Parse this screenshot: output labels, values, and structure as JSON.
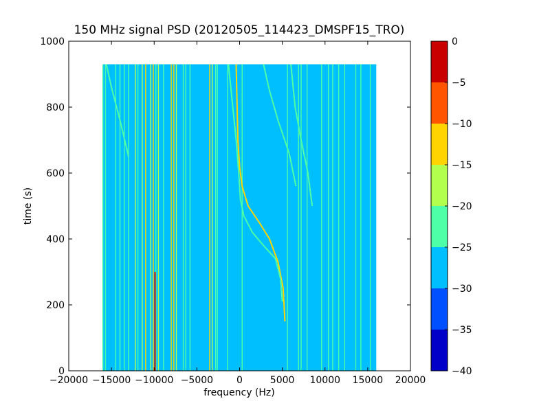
{
  "chart_data": {
    "type": "heatmap",
    "title": "150 MHz signal PSD (20120505_114423_DMSPF15_TRO)",
    "xlabel": "frequency (Hz)",
    "ylabel": "time (s)",
    "xlim": [
      -20000,
      20000
    ],
    "ylim": [
      0,
      1000
    ],
    "x_ticks": [
      -20000,
      -15000,
      -10000,
      -5000,
      0,
      5000,
      10000,
      15000,
      20000
    ],
    "y_ticks": [
      0,
      200,
      400,
      600,
      800,
      1000
    ],
    "data_extent": {
      "x": [
        -16000,
        16000
      ],
      "y": [
        0,
        930
      ]
    },
    "background_level": -27,
    "colormap": "jet",
    "colorbar": {
      "range": [
        -40,
        0
      ],
      "ticks": [
        0,
        -5,
        -10,
        -15,
        -20,
        -25,
        -30,
        -35,
        -40
      ],
      "levels": [
        {
          "from": -40,
          "to": -35,
          "color": "#0000c8"
        },
        {
          "from": -35,
          "to": -30,
          "color": "#0050ff"
        },
        {
          "from": -30,
          "to": -25,
          "color": "#00bfff"
        },
        {
          "from": -25,
          "to": -20,
          "color": "#4dffa6"
        },
        {
          "from": -20,
          "to": -15,
          "color": "#b3ff4d"
        },
        {
          "from": -15,
          "to": -10,
          "color": "#ffd400"
        },
        {
          "from": -10,
          "to": -5,
          "color": "#ff5500"
        },
        {
          "from": -5,
          "to": 0,
          "color": "#c80000"
        }
      ]
    },
    "lines": [
      {
        "freq": -16000,
        "level": -22
      },
      {
        "freq": -15700,
        "level": -22
      },
      {
        "freq": -14500,
        "level": -22
      },
      {
        "freq": -14000,
        "level": -22
      },
      {
        "freq": -13500,
        "level": -22
      },
      {
        "freq": -13000,
        "level": -22
      },
      {
        "freq": -12200,
        "level": -18
      },
      {
        "freq": -11900,
        "level": -22
      },
      {
        "freq": -11400,
        "level": -18
      },
      {
        "freq": -11000,
        "level": -14
      },
      {
        "freq": -10400,
        "level": -18
      },
      {
        "freq": -10100,
        "level": -14
      },
      {
        "freq": -9800,
        "level": -22
      },
      {
        "freq": -9500,
        "level": -18
      },
      {
        "freq": -8900,
        "level": -22
      },
      {
        "freq": -8000,
        "level": -14
      },
      {
        "freq": -7700,
        "level": -14
      },
      {
        "freq": -7400,
        "level": -18
      },
      {
        "freq": -6600,
        "level": -22
      },
      {
        "freq": -6300,
        "level": -22
      },
      {
        "freq": -5800,
        "level": -22
      },
      {
        "freq": -3500,
        "level": -14
      },
      {
        "freq": -3200,
        "level": -18
      },
      {
        "freq": -2800,
        "level": -22
      },
      {
        "freq": -2600,
        "level": -22
      },
      {
        "freq": -1400,
        "level": -22
      },
      {
        "freq": 300,
        "level": -22
      },
      {
        "freq": 5600,
        "level": -22
      },
      {
        "freq": 6900,
        "level": -22
      },
      {
        "freq": 7200,
        "level": -22
      },
      {
        "freq": 7900,
        "level": -22
      },
      {
        "freq": 9600,
        "level": -22
      },
      {
        "freq": 10400,
        "level": -22
      },
      {
        "freq": 10900,
        "level": -22
      },
      {
        "freq": 11600,
        "level": -22
      },
      {
        "freq": 12300,
        "level": -22
      },
      {
        "freq": 13600,
        "level": -22
      },
      {
        "freq": 14200,
        "level": -22
      },
      {
        "freq": 15300,
        "level": -22
      }
    ],
    "segments": [
      {
        "freq": -9900,
        "t_start": 0,
        "t_end": 300,
        "level": -4
      }
    ],
    "chirps": [
      {
        "name": "",
        "level": -12,
        "points": [
          [
            5300,
            150
          ],
          [
            5100,
            250
          ],
          [
            4500,
            330
          ],
          [
            3500,
            400
          ],
          [
            2300,
            450
          ],
          [
            1000,
            500
          ],
          [
            300,
            560
          ],
          [
            0,
            620
          ],
          [
            -200,
            700
          ],
          [
            -400,
            930
          ]
        ]
      },
      {
        "name": "",
        "level": -20,
        "points": [
          [
            5000,
            210
          ],
          [
            4800,
            280
          ],
          [
            4200,
            340
          ],
          [
            2800,
            380
          ],
          [
            1500,
            420
          ],
          [
            500,
            470
          ],
          [
            100,
            520
          ],
          [
            -100,
            600
          ],
          [
            -400,
            700
          ],
          [
            -800,
            800
          ],
          [
            -1300,
            930
          ]
        ]
      },
      {
        "name": "",
        "level": -22,
        "points": [
          [
            6600,
            560
          ],
          [
            5800,
            660
          ],
          [
            4500,
            760
          ],
          [
            3500,
            850
          ],
          [
            2800,
            930
          ]
        ]
      },
      {
        "name": "",
        "level": -22,
        "points": [
          [
            8500,
            500
          ],
          [
            8000,
            600
          ],
          [
            7200,
            700
          ],
          [
            6500,
            800
          ],
          [
            6000,
            930
          ]
        ]
      },
      {
        "name": "",
        "level": -22,
        "points": [
          [
            -13000,
            650
          ],
          [
            -14000,
            760
          ],
          [
            -15000,
            860
          ],
          [
            -15600,
            930
          ]
        ]
      }
    ]
  }
}
